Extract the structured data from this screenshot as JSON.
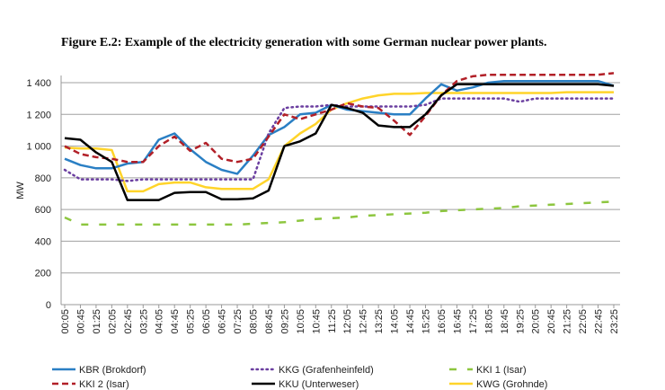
{
  "chart_data": {
    "type": "line",
    "title": "Figure E.2: Example of the electricity generation with some German nuclear power plants.",
    "xlabel": "",
    "ylabel": "MW",
    "ylim": [
      0,
      1400
    ],
    "yticks": [
      "0",
      "200",
      "400",
      "600",
      "800",
      "1 000",
      "1 200",
      "1 400"
    ],
    "ytick_values": [
      0,
      200,
      400,
      600,
      800,
      1000,
      1200,
      1400
    ],
    "grid": true,
    "legend_position": "bottom",
    "categories": [
      "00:05",
      "00:45",
      "01:25",
      "02:05",
      "02:45",
      "03:25",
      "04:05",
      "04:45",
      "05:25",
      "06:05",
      "06:45",
      "07:25",
      "08:05",
      "08:45",
      "09:25",
      "10:05",
      "10:45",
      "11:25",
      "12:05",
      "12:45",
      "13:25",
      "14:05",
      "14:45",
      "15:25",
      "16:05",
      "16:45",
      "17:25",
      "18:05",
      "18:45",
      "19:25",
      "20:05",
      "20:45",
      "21:25",
      "22:05",
      "22:45",
      "23:25"
    ],
    "series": [
      {
        "name": "KBR (Brokdorf)",
        "color": "#2a7fc4",
        "style": "solid",
        "values": [
          920,
          880,
          860,
          860,
          890,
          900,
          1040,
          1080,
          980,
          900,
          850,
          825,
          940,
          1070,
          1120,
          1200,
          1210,
          1260,
          1230,
          1220,
          1210,
          1200,
          1200,
          1300,
          1390,
          1350,
          1370,
          1400,
          1410,
          1410,
          1410,
          1410,
          1410,
          1410,
          1410,
          1380
        ]
      },
      {
        "name": "KKG (Grafenheinfeld)",
        "color": "#6b3fa0",
        "style": "dotted",
        "values": [
          850,
          790,
          790,
          790,
          780,
          790,
          790,
          790,
          790,
          790,
          790,
          790,
          790,
          1080,
          1240,
          1250,
          1250,
          1260,
          1250,
          1250,
          1250,
          1250,
          1250,
          1260,
          1300,
          1300,
          1300,
          1300,
          1300,
          1280,
          1300,
          1300,
          1300,
          1300,
          1300,
          1300
        ]
      },
      {
        "name": "KKI 1 (Isar)",
        "color": "#8dc63f",
        "style": "dashed-long",
        "values": [
          550,
          505,
          505,
          505,
          505,
          505,
          505,
          505,
          505,
          505,
          505,
          505,
          510,
          515,
          520,
          530,
          540,
          545,
          550,
          560,
          565,
          570,
          575,
          580,
          590,
          595,
          600,
          605,
          610,
          620,
          625,
          630,
          635,
          640,
          645,
          650
        ]
      },
      {
        "name": "KKI 2 (Isar)",
        "color": "#b22028",
        "style": "dashed",
        "values": [
          1000,
          950,
          930,
          920,
          900,
          900,
          1000,
          1060,
          970,
          1020,
          920,
          900,
          920,
          1060,
          1200,
          1170,
          1200,
          1230,
          1270,
          1250,
          1240,
          1160,
          1070,
          1190,
          1320,
          1410,
          1440,
          1450,
          1450,
          1450,
          1450,
          1450,
          1450,
          1450,
          1450,
          1460
        ]
      },
      {
        "name": "KKU (Unterweser)",
        "color": "#000000",
        "style": "solid",
        "values": [
          1050,
          1040,
          960,
          900,
          660,
          660,
          660,
          705,
          710,
          710,
          665,
          665,
          670,
          720,
          1000,
          1030,
          1080,
          1260,
          1240,
          1210,
          1130,
          1120,
          1120,
          1200,
          1320,
          1390,
          1390,
          1390,
          1390,
          1390,
          1390,
          1390,
          1390,
          1390,
          1390,
          1380
        ]
      },
      {
        "name": "KWG (Grohnde)",
        "color": "#ffd42a",
        "style": "solid",
        "values": [
          990,
          985,
          985,
          975,
          715,
          715,
          760,
          770,
          770,
          740,
          730,
          730,
          730,
          790,
          1000,
          1080,
          1140,
          1230,
          1270,
          1300,
          1320,
          1330,
          1330,
          1335,
          1335,
          1335,
          1335,
          1335,
          1335,
          1335,
          1335,
          1335,
          1340,
          1340,
          1340,
          1340
        ]
      }
    ]
  }
}
